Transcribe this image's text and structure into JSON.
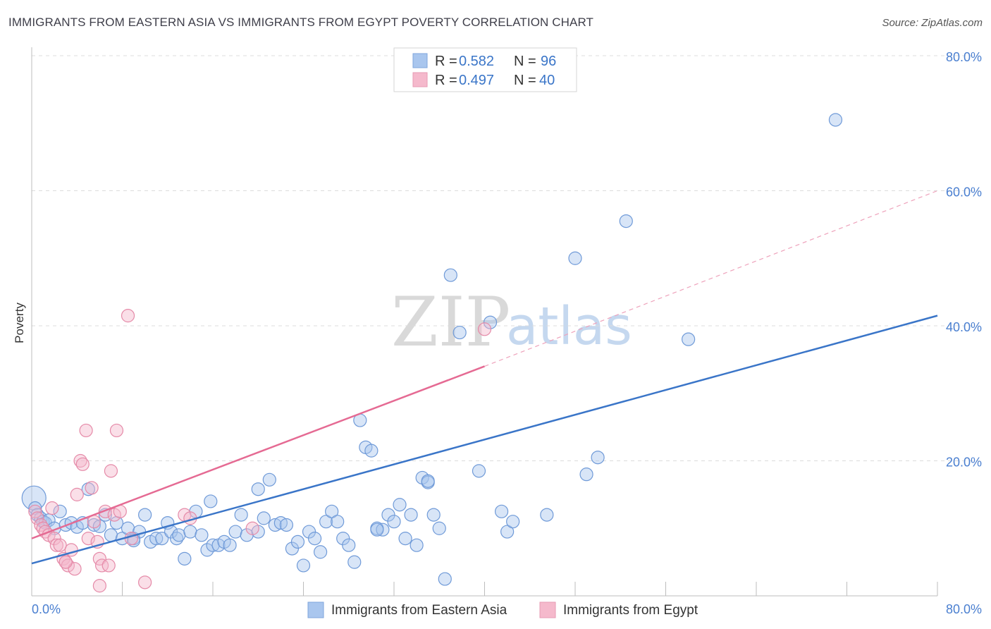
{
  "title": "IMMIGRANTS FROM EASTERN ASIA VS IMMIGRANTS FROM EGYPT POVERTY CORRELATION CHART",
  "source": "Source: ZipAtlas.com",
  "watermark": {
    "zip": "ZIP",
    "atlas": "atlas"
  },
  "colors": {
    "blue": "#4a7fd0",
    "pink": "#e56a93",
    "blue_fill": "#a9c6ee",
    "pink_fill": "#f5b9cc"
  },
  "legend": {
    "rows": [
      {
        "r_label": "R = ",
        "r_value": "0.582",
        "n_label": "N = ",
        "n_value": "96"
      },
      {
        "r_label": "R = ",
        "r_value": "0.497",
        "n_label": "N = ",
        "n_value": "40"
      }
    ]
  },
  "chart_data": {
    "type": "scatter",
    "title": "IMMIGRANTS FROM EASTERN ASIA VS IMMIGRANTS FROM EGYPT POVERTY CORRELATION CHART",
    "xlabel": "",
    "ylabel": "Poverty",
    "xlim": [
      0,
      80
    ],
    "ylim": [
      0,
      80
    ],
    "x_tick_labels": [
      "0.0%",
      "80.0%"
    ],
    "y_ticks": [
      20,
      40,
      60,
      80
    ],
    "y_tick_labels": [
      "20.0%",
      "40.0%",
      "60.0%",
      "80.0%"
    ],
    "series": [
      {
        "name": "Immigrants from Eastern Asia",
        "color": "#4a7fd0",
        "R": 0.582,
        "N": 96,
        "trend": {
          "x": [
            0,
            80
          ],
          "y": [
            4.8,
            41.5
          ]
        },
        "points": [
          [
            0.2,
            14.5
          ],
          [
            0.3,
            13.0
          ],
          [
            0.5,
            12.0
          ],
          [
            0.8,
            11.5
          ],
          [
            1.0,
            11.0
          ],
          [
            1.2,
            10.8
          ],
          [
            1.5,
            11.2
          ],
          [
            2.0,
            10.0
          ],
          [
            2.5,
            12.5
          ],
          [
            3.0,
            10.5
          ],
          [
            3.5,
            10.8
          ],
          [
            4.0,
            10.2
          ],
          [
            4.5,
            10.8
          ],
          [
            5.0,
            15.8
          ],
          [
            5.5,
            10.5
          ],
          [
            6.0,
            10.3
          ],
          [
            6.5,
            12.0
          ],
          [
            7.0,
            9.0
          ],
          [
            7.5,
            10.8
          ],
          [
            8.0,
            8.5
          ],
          [
            8.5,
            10.0
          ],
          [
            9.0,
            8.5
          ],
          [
            9.5,
            9.5
          ],
          [
            10.0,
            12.0
          ],
          [
            10.5,
            8.0
          ],
          [
            11.0,
            8.5
          ],
          [
            11.5,
            8.5
          ],
          [
            12.0,
            10.8
          ],
          [
            12.3,
            9.5
          ],
          [
            12.8,
            8.5
          ],
          [
            13.0,
            9.0
          ],
          [
            13.5,
            5.5
          ],
          [
            14.0,
            9.5
          ],
          [
            14.5,
            12.5
          ],
          [
            15.0,
            9.0
          ],
          [
            15.5,
            6.8
          ],
          [
            15.8,
            14.0
          ],
          [
            16.0,
            7.5
          ],
          [
            16.5,
            7.5
          ],
          [
            17.0,
            8.0
          ],
          [
            17.5,
            7.5
          ],
          [
            18.0,
            9.5
          ],
          [
            18.5,
            12.0
          ],
          [
            19.0,
            9.0
          ],
          [
            20.0,
            15.8
          ],
          [
            20.5,
            11.5
          ],
          [
            21.0,
            17.2
          ],
          [
            21.5,
            10.5
          ],
          [
            22.0,
            10.8
          ],
          [
            22.5,
            10.5
          ],
          [
            23.0,
            7.0
          ],
          [
            23.5,
            8.0
          ],
          [
            24.0,
            4.5
          ],
          [
            24.5,
            9.5
          ],
          [
            25.0,
            8.5
          ],
          [
            25.5,
            6.5
          ],
          [
            26.0,
            11.0
          ],
          [
            26.5,
            12.5
          ],
          [
            27.0,
            11.0
          ],
          [
            27.5,
            8.5
          ],
          [
            28.0,
            7.5
          ],
          [
            28.5,
            5.0
          ],
          [
            29.0,
            26.0
          ],
          [
            29.5,
            22.0
          ],
          [
            30.0,
            21.5
          ],
          [
            30.5,
            10.0
          ],
          [
            31.0,
            9.8
          ],
          [
            31.5,
            12.0
          ],
          [
            32.0,
            11.0
          ],
          [
            32.5,
            13.5
          ],
          [
            33.0,
            8.5
          ],
          [
            33.5,
            12.0
          ],
          [
            34.0,
            7.5
          ],
          [
            34.5,
            17.5
          ],
          [
            35.0,
            16.8
          ],
          [
            35.5,
            12.0
          ],
          [
            36.0,
            10.0
          ],
          [
            36.5,
            2.5
          ],
          [
            37.0,
            47.5
          ],
          [
            37.8,
            39.0
          ],
          [
            39.5,
            18.5
          ],
          [
            40.5,
            40.5
          ],
          [
            41.5,
            12.5
          ],
          [
            42.0,
            9.5
          ],
          [
            42.5,
            11.0
          ],
          [
            45.5,
            12.0
          ],
          [
            48.0,
            50.0
          ],
          [
            49.0,
            18.0
          ],
          [
            50.0,
            20.5
          ],
          [
            52.5,
            55.5
          ],
          [
            58.0,
            38.0
          ],
          [
            71.0,
            70.5
          ],
          [
            35.0,
            17.0
          ],
          [
            30.5,
            9.8
          ],
          [
            20.0,
            9.5
          ],
          [
            9.0,
            8.2
          ]
        ]
      },
      {
        "name": "Immigrants from Egypt",
        "color": "#e56a93",
        "R": 0.497,
        "N": 40,
        "trend": {
          "x": [
            0,
            40
          ],
          "y": [
            8.5,
            34.0
          ]
        },
        "trend_extension": {
          "x": [
            40,
            80
          ],
          "y": [
            34.0,
            60.0
          ]
        },
        "points": [
          [
            0.3,
            12.5
          ],
          [
            0.5,
            11.5
          ],
          [
            0.8,
            10.5
          ],
          [
            1.0,
            10.0
          ],
          [
            1.2,
            9.5
          ],
          [
            1.5,
            9.0
          ],
          [
            1.8,
            13.0
          ],
          [
            2.0,
            8.5
          ],
          [
            2.2,
            7.5
          ],
          [
            2.5,
            7.5
          ],
          [
            2.8,
            5.5
          ],
          [
            3.0,
            5.0
          ],
          [
            3.2,
            4.5
          ],
          [
            3.5,
            6.8
          ],
          [
            3.8,
            4.0
          ],
          [
            4.0,
            15.0
          ],
          [
            4.3,
            20.0
          ],
          [
            4.5,
            19.5
          ],
          [
            4.8,
            24.5
          ],
          [
            5.0,
            8.5
          ],
          [
            5.3,
            16.0
          ],
          [
            5.5,
            11.0
          ],
          [
            5.8,
            8.0
          ],
          [
            6.0,
            5.5
          ],
          [
            6.2,
            4.5
          ],
          [
            6.5,
            12.5
          ],
          [
            6.8,
            4.5
          ],
          [
            7.0,
            18.5
          ],
          [
            7.3,
            12.0
          ],
          [
            7.5,
            24.5
          ],
          [
            8.5,
            41.5
          ],
          [
            8.8,
            8.5
          ],
          [
            10.0,
            2.0
          ],
          [
            13.5,
            12.0
          ],
          [
            14.0,
            11.5
          ],
          [
            19.5,
            10.0
          ],
          [
            40.0,
            39.5
          ],
          [
            6.0,
            1.5
          ],
          [
            3.0,
            5.0
          ],
          [
            7.8,
            12.5
          ]
        ]
      }
    ]
  }
}
